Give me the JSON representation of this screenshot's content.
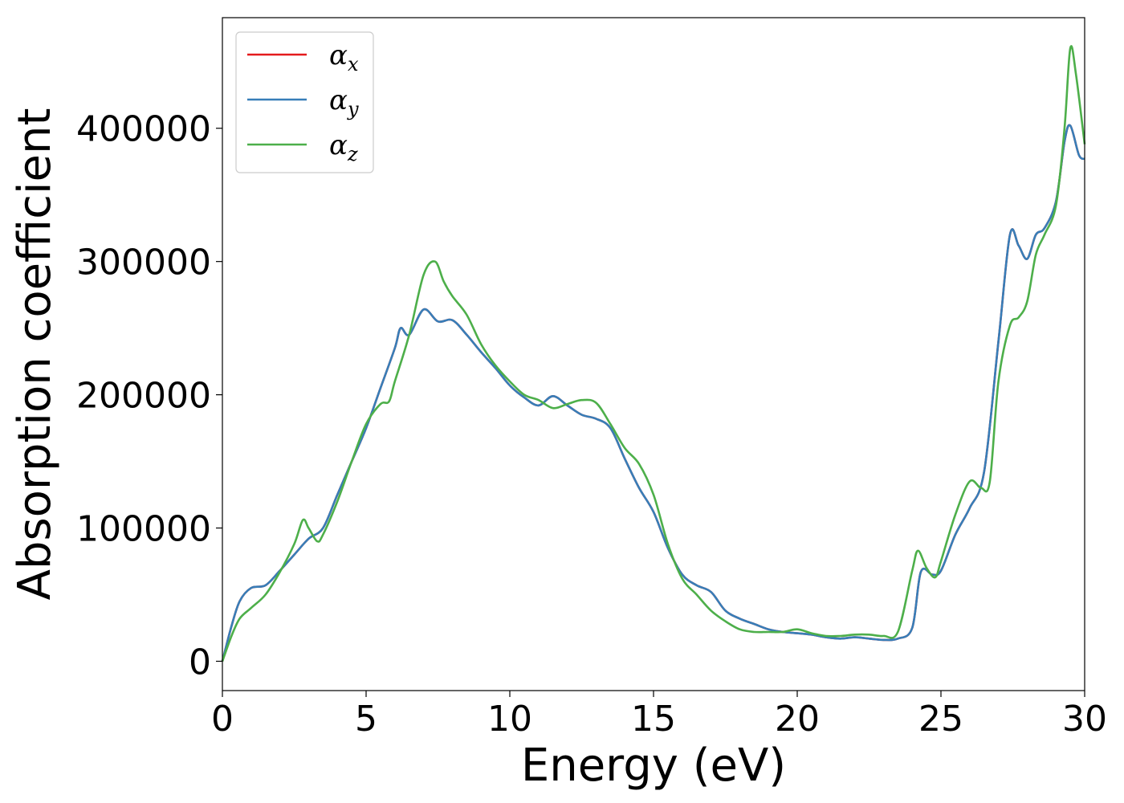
{
  "chart_data": {
    "type": "line",
    "title": "",
    "xlabel": "Energy (eV)",
    "ylabel": "Absorption coefficient",
    "xlim": [
      0,
      30
    ],
    "ylim": [
      -22000,
      483000
    ],
    "x_ticks": [
      0,
      5,
      10,
      15,
      20,
      25,
      30
    ],
    "y_ticks": [
      0,
      100000,
      200000,
      300000,
      400000
    ],
    "grid": false,
    "legend_position": "top-left",
    "series": [
      {
        "name": "αx",
        "name_base": "α",
        "name_sub": "x",
        "color": "#e41a1c",
        "x": [
          0,
          0.3,
          0.6,
          1.0,
          1.5,
          2.0,
          2.5,
          3.0,
          3.5,
          4.0,
          4.5,
          5.0,
          5.5,
          6.0,
          6.2,
          6.5,
          7.0,
          7.5,
          8.0,
          8.5,
          9.0,
          9.5,
          10.0,
          10.5,
          11.0,
          11.5,
          12.0,
          12.5,
          13.0,
          13.5,
          14.0,
          14.5,
          15.0,
          15.5,
          16.0,
          16.5,
          17.0,
          17.5,
          18.0,
          18.5,
          19.0,
          19.5,
          20.0,
          20.5,
          21.0,
          21.5,
          22.0,
          22.5,
          23.0,
          23.5,
          24.0,
          24.3,
          24.7,
          25.0,
          25.5,
          26.0,
          26.5,
          27.0,
          27.4,
          27.7,
          28.0,
          28.3,
          28.6,
          29.0,
          29.3,
          29.5,
          29.8,
          30.0
        ],
        "y": [
          0,
          25000,
          45000,
          55000,
          57000,
          68000,
          80000,
          92000,
          100000,
          125000,
          150000,
          175000,
          205000,
          235000,
          250000,
          245000,
          264000,
          255000,
          256000,
          245000,
          232000,
          220000,
          207000,
          198000,
          192000,
          199000,
          192000,
          185000,
          182000,
          175000,
          152000,
          130000,
          112000,
          85000,
          65000,
          57000,
          52000,
          38000,
          32000,
          28000,
          24000,
          22000,
          21000,
          20000,
          18000,
          17000,
          18000,
          17000,
          16000,
          17000,
          25000,
          67000,
          65000,
          68000,
          95000,
          115000,
          142000,
          240000,
          320000,
          312000,
          302000,
          320000,
          325000,
          345000,
          390000,
          402000,
          380000,
          377000
        ]
      },
      {
        "name": "αy",
        "name_base": "α",
        "name_sub": "y",
        "color": "#377eb8",
        "x": [
          0,
          0.3,
          0.6,
          1.0,
          1.5,
          2.0,
          2.5,
          3.0,
          3.5,
          4.0,
          4.5,
          5.0,
          5.5,
          6.0,
          6.2,
          6.5,
          7.0,
          7.5,
          8.0,
          8.5,
          9.0,
          9.5,
          10.0,
          10.5,
          11.0,
          11.5,
          12.0,
          12.5,
          13.0,
          13.5,
          14.0,
          14.5,
          15.0,
          15.5,
          16.0,
          16.5,
          17.0,
          17.5,
          18.0,
          18.5,
          19.0,
          19.5,
          20.0,
          20.5,
          21.0,
          21.5,
          22.0,
          22.5,
          23.0,
          23.5,
          24.0,
          24.3,
          24.7,
          25.0,
          25.5,
          26.0,
          26.5,
          27.0,
          27.4,
          27.7,
          28.0,
          28.3,
          28.6,
          29.0,
          29.3,
          29.5,
          29.8,
          30.0
        ],
        "y": [
          0,
          25000,
          45000,
          55000,
          57000,
          68000,
          80000,
          92000,
          100000,
          125000,
          150000,
          175000,
          205000,
          235000,
          250000,
          245000,
          264000,
          255000,
          256000,
          245000,
          232000,
          220000,
          207000,
          198000,
          192000,
          199000,
          192000,
          185000,
          182000,
          175000,
          152000,
          130000,
          112000,
          85000,
          65000,
          57000,
          52000,
          38000,
          32000,
          28000,
          24000,
          22000,
          21000,
          20000,
          18000,
          17000,
          18000,
          17000,
          16000,
          17000,
          25000,
          67000,
          65000,
          68000,
          95000,
          115000,
          142000,
          240000,
          320000,
          312000,
          302000,
          320000,
          325000,
          345000,
          390000,
          402000,
          380000,
          377000
        ]
      },
      {
        "name": "αz",
        "name_base": "α",
        "name_sub": "z",
        "color": "#4daf4a",
        "x": [
          0,
          0.3,
          0.6,
          1.0,
          1.5,
          2.0,
          2.5,
          2.8,
          3.0,
          3.3,
          3.5,
          4.0,
          4.5,
          5.0,
          5.5,
          5.8,
          6.0,
          6.5,
          7.0,
          7.4,
          7.7,
          8.0,
          8.5,
          9.0,
          9.5,
          10.0,
          10.5,
          11.0,
          11.5,
          12.0,
          12.5,
          13.0,
          13.5,
          14.0,
          14.5,
          15.0,
          15.5,
          16.0,
          16.5,
          17.0,
          17.5,
          18.0,
          18.5,
          19.0,
          19.5,
          20.0,
          20.5,
          21.0,
          21.5,
          22.0,
          22.5,
          23.0,
          23.5,
          24.0,
          24.2,
          24.5,
          24.8,
          25.0,
          25.5,
          26.0,
          26.4,
          26.7,
          27.0,
          27.4,
          27.7,
          28.0,
          28.3,
          28.6,
          29.0,
          29.3,
          29.5,
          29.7,
          30.0
        ],
        "y": [
          0,
          18000,
          32000,
          40000,
          50000,
          67000,
          88000,
          106000,
          100000,
          90000,
          95000,
          120000,
          150000,
          178000,
          193000,
          195000,
          210000,
          245000,
          290000,
          300000,
          285000,
          274000,
          260000,
          238000,
          222000,
          210000,
          200000,
          196000,
          190000,
          193000,
          196000,
          194000,
          178000,
          160000,
          148000,
          125000,
          88000,
          62000,
          50000,
          38000,
          30000,
          24000,
          22000,
          22000,
          22000,
          24000,
          21000,
          19000,
          19000,
          20000,
          20000,
          19000,
          22000,
          68000,
          83000,
          70000,
          63000,
          75000,
          110000,
          135000,
          130000,
          135000,
          210000,
          252000,
          258000,
          270000,
          305000,
          320000,
          342000,
          400000,
          460000,
          440000,
          388000
        ]
      }
    ]
  }
}
